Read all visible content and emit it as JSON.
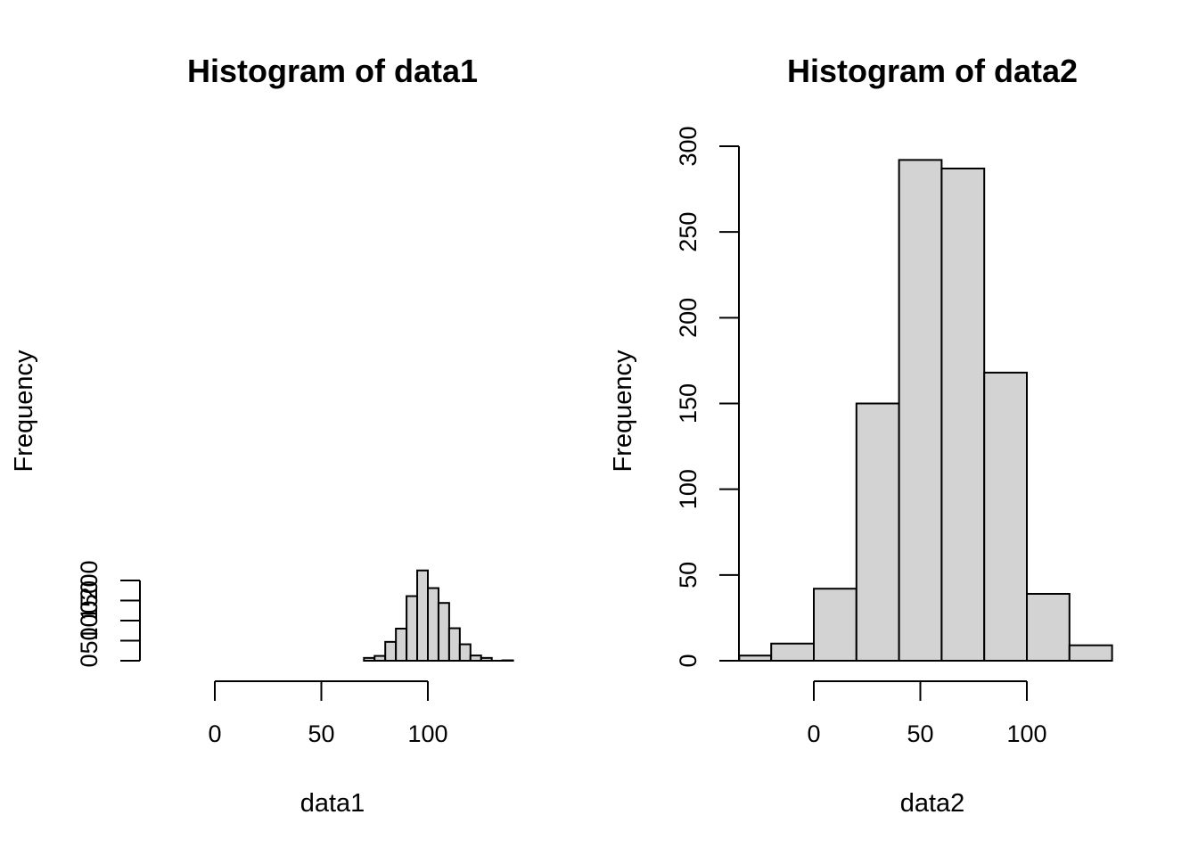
{
  "chart_data": [
    {
      "type": "bar",
      "title": "Histogram of data1",
      "xlabel": "data1",
      "ylabel": "Frequency",
      "bins": [
        {
          "x0": 70,
          "x1": 75,
          "count": 7
        },
        {
          "x0": 75,
          "x1": 80,
          "count": 12
        },
        {
          "x0": 80,
          "x1": 85,
          "count": 47
        },
        {
          "x0": 85,
          "x1": 90,
          "count": 80
        },
        {
          "x0": 90,
          "x1": 95,
          "count": 161
        },
        {
          "x0": 95,
          "x1": 100,
          "count": 225
        },
        {
          "x0": 100,
          "x1": 105,
          "count": 181
        },
        {
          "x0": 105,
          "x1": 110,
          "count": 144
        },
        {
          "x0": 110,
          "x1": 115,
          "count": 81
        },
        {
          "x0": 115,
          "x1": 120,
          "count": 41
        },
        {
          "x0": 120,
          "x1": 125,
          "count": 13
        },
        {
          "x0": 125,
          "x1": 130,
          "count": 7
        },
        {
          "x0": 130,
          "x1": 135,
          "count": 0
        },
        {
          "x0": 135,
          "x1": 140,
          "count": 1
        }
      ],
      "xticks": [
        "0",
        "50",
        "100"
      ],
      "yticks": [
        "0",
        "50",
        "100",
        "150",
        "200"
      ],
      "xlim": [
        -35,
        140
      ],
      "ylim": [
        0,
        225
      ]
    },
    {
      "type": "bar",
      "title": "Histogram of data2",
      "xlabel": "data2",
      "ylabel": "Frequency",
      "bins": [
        {
          "x0": -35,
          "x1": -20,
          "count": 3
        },
        {
          "x0": -20,
          "x1": 0,
          "count": 10
        },
        {
          "x0": 0,
          "x1": 20,
          "count": 42
        },
        {
          "x0": 20,
          "x1": 40,
          "count": 150
        },
        {
          "x0": 40,
          "x1": 60,
          "count": 292
        },
        {
          "x0": 60,
          "x1": 80,
          "count": 287
        },
        {
          "x0": 80,
          "x1": 100,
          "count": 168
        },
        {
          "x0": 100,
          "x1": 120,
          "count": 39
        },
        {
          "x0": 120,
          "x1": 140,
          "count": 9
        }
      ],
      "xticks": [
        "0",
        "50",
        "100"
      ],
      "yticks": [
        "0",
        "50",
        "100",
        "150",
        "200",
        "250",
        "300"
      ],
      "xlim": [
        -35,
        140
      ],
      "ylim": [
        0,
        300
      ]
    }
  ]
}
